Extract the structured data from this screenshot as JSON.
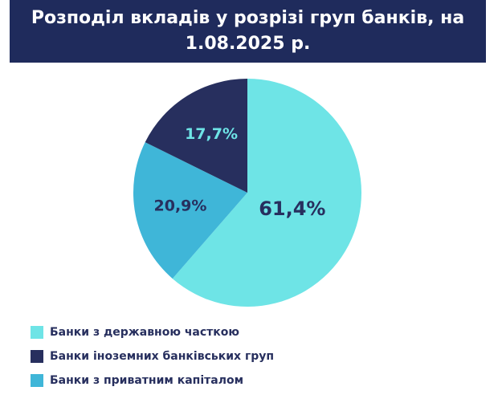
{
  "chart_data": {
    "type": "pie",
    "title": "Розподіл вкладів у розрізі груп банків, на 1.08.2025 р.",
    "categories": [
      "Банки з державною часткою",
      "Банки іноземних банківських груп",
      "Банки з приватним капіталом"
    ],
    "values": [
      61.4,
      17.7,
      20.9
    ],
    "value_labels": [
      "61,4%",
      "17,7%",
      "20,9%"
    ],
    "colors": [
      "#6ee4e6",
      "#272f5e",
      "#3fb6d8"
    ],
    "value_label_colors": [
      "#272f5e",
      "#6ee4e6",
      "#272f5e"
    ]
  }
}
